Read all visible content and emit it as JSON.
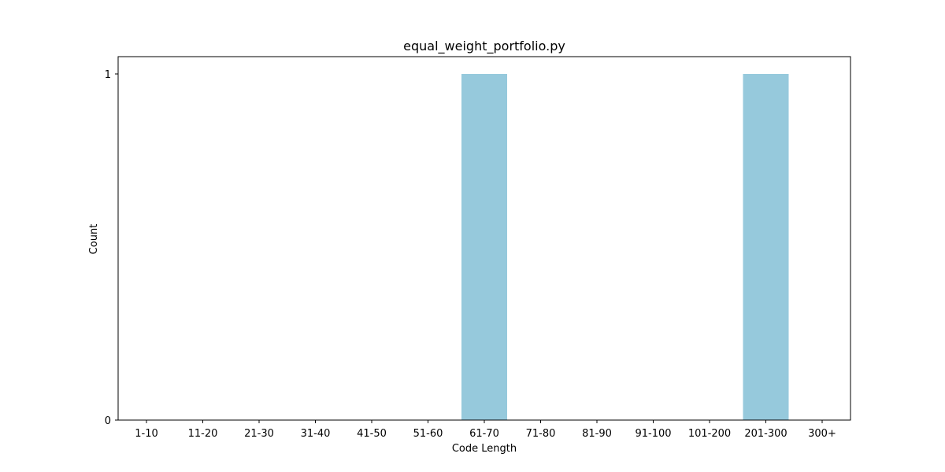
{
  "chart_data": {
    "type": "bar",
    "title": "equal_weight_portfolio.py",
    "xlabel": "Code Length",
    "ylabel": "Count",
    "categories": [
      "1-10",
      "11-20",
      "21-30",
      "31-40",
      "41-50",
      "51-60",
      "61-70",
      "71-80",
      "81-90",
      "91-100",
      "101-200",
      "201-300",
      "300+"
    ],
    "values": [
      0,
      0,
      0,
      0,
      0,
      0,
      1,
      0,
      0,
      0,
      0,
      1,
      0
    ],
    "ylim": [
      0,
      1
    ],
    "yticks": [
      0,
      1
    ],
    "grid": false,
    "bar_color": "#96c9dc"
  }
}
